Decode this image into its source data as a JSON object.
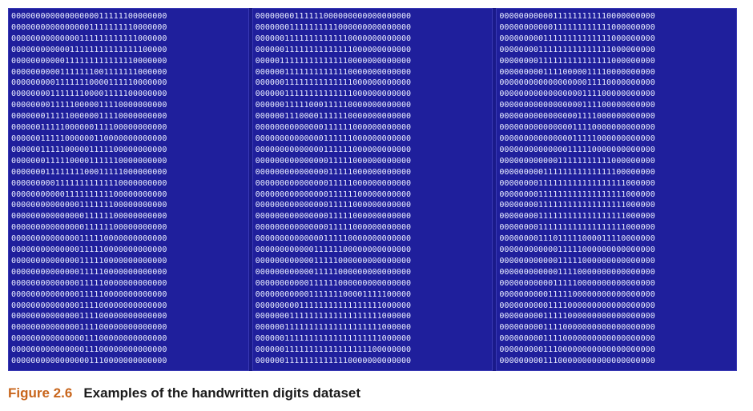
{
  "caption": {
    "label": "Figure 2.6",
    "text": "Examples of the handwritten digits dataset"
  },
  "panels": [
    {
      "rows": [
        "00000000000000000011111100000000",
        "00000000000000001111111110000000",
        "00000000000000111111111111000000",
        "00000000000011111111111111100000",
        "00000000000111111111111110000000",
        "00000000001111111001111111000000",
        "00000000011111110000111110000000",
        "00000000111111100001111100000000",
        "00000000111110000011110000000000",
        "00000001111100000011110000000000",
        "00000011111000000111100000000000",
        "00000011111000000110000000000000",
        "00000011111000001111100000000000",
        "00000001111100001111110000000000",
        "00000001111111100011111000000000",
        "00000000011111111111110000000000",
        "00000000000111111111100000000000",
        "00000000000000111111100000000000",
        "00000000000000011111100000000000",
        "00000000000000011111100000000000",
        "00000000000000111110000000000000",
        "00000000000000111110000000000000",
        "00000000000000111110000000000000",
        "00000000000000111110000000000000",
        "00000000000000111110000000000000",
        "00000000000000111110000000000000",
        "00000000000000111100000000000000",
        "00000000000000111100000000000000",
        "00000000000000111100000000000000",
        "00000000000000011100000000000000",
        "00000000000000011100000000000000",
        "00000000000000001110000000000000"
      ]
    },
    {
      "rows": [
        "00000000111111000000000000000000",
        "00000001111111111000000000000000",
        "00000011111111111110000000000000",
        "00000011111111111111000000000000",
        "00000111111111111110000000000000",
        "00000011111111111110000000000000",
        "00000011111111111111000000000000",
        "00000011111111111111000000000000",
        "00000011111000111110000000000000",
        "00000011100001111110000000000000",
        "00000000000000111111000000000000",
        "00000000000000111111000000000000",
        "00000000000000111111000000000000",
        "00000000000000011111000000000000",
        "00000000000000011111000000000000",
        "00000000000000011111000000000000",
        "00000000000000011111100000000000",
        "00000000000000011111000000000000",
        "00000000000000011111000000000000",
        "00000000000000011111000000000000",
        "00000000000000111110000000000000",
        "00000000000011111100000000000000",
        "00000000000011111000000000000000",
        "00000000000011111000000000000000",
        "00000000000111111000000000000000",
        "00000000000111111100001111100000",
        "00000000011111111111111111000000",
        "00000001111111111111111111000000",
        "00000011111111111111111111000000",
        "00000011111111111111111111000000",
        "00000011111111111111111100000000",
        "00000011111111111110000000000000"
      ]
    },
    {
      "rows": [
        "00000000000111111111110000000000",
        "00000000000111111111111000000000",
        "00000000011111111111111000000000",
        "00000000111111111111111000000000",
        "00000000111111111111111000000000",
        "00000000011110000011110000000000",
        "00000000000000000011110000000000",
        "00000000000000000111100000000000",
        "00000000000000000111100000000000",
        "00000000000000001111000000000000",
        "00000000000000011110000000000000",
        "00000000000000011111000000000000",
        "00000000000000111110000000000000",
        "00000000000011111111111000000000",
        "00000000011111111111111100000000",
        "00000000111111111111111111000000",
        "00000000111111111111111111000000",
        "00000000111111111111111111000000",
        "00000000111111111111111111000000",
        "00000000111111111111111111000000",
        "00000000111011111000011110000000",
        "00000000000011111000000000000000",
        "00000000000011111000000000000000",
        "00000000000011110000000000000000",
        "00000000000111110000000000000000",
        "00000000001111100000000000000000",
        "00000000001111000000000000000000",
        "00000000011111000000000000000000",
        "00000000011110000000000000000000",
        "00000000011110000000000000000000",
        "00000000011100000000000000000000",
        "00000000011100000000000000000000"
      ]
    }
  ]
}
